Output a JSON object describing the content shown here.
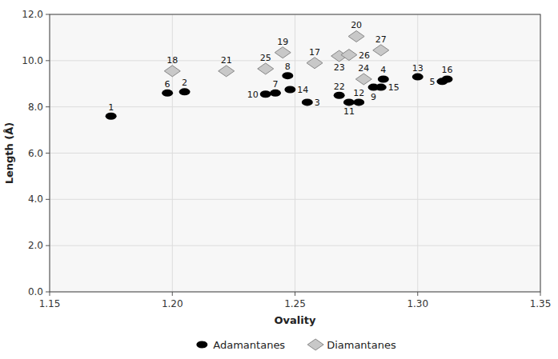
{
  "chart_data": {
    "type": "scatter",
    "xlabel": "Ovality",
    "ylabel": "Length (Å)",
    "xlim": [
      1.15,
      1.35
    ],
    "ylim": [
      0.0,
      12.0
    ],
    "xticks": [
      1.15,
      {
        "value": 1.2,
        "label": "1.20"
      },
      1.25,
      {
        "value": 1.3,
        "label": "1.30"
      },
      1.35
    ],
    "yticks": [
      {
        "value": 0.0,
        "label": "0.0"
      },
      {
        "value": 2.0,
        "label": "2.0"
      },
      {
        "value": 4.0,
        "label": "4.0"
      },
      {
        "value": 6.0,
        "label": "6.0"
      },
      {
        "value": 8.0,
        "label": "8.0"
      },
      {
        "value": 10.0,
        "label": "10.0"
      },
      {
        "value": 12.0,
        "label": "12.0"
      }
    ],
    "grid": true,
    "legend": "bottom",
    "series": [
      {
        "name": "Adamantanes",
        "color": "black",
        "marker": "ellipse",
        "x": [
          1.175,
          1.198,
          1.205,
          1.238,
          1.242,
          1.247,
          1.248,
          1.255,
          1.268,
          1.272,
          1.276,
          1.282,
          1.285,
          1.286,
          1.3,
          1.31,
          1.312
        ],
        "values": [
          7.6,
          8.6,
          8.65,
          8.55,
          8.6,
          9.35,
          8.75,
          8.2,
          8.5,
          8.2,
          8.2,
          8.85,
          8.85,
          9.2,
          9.3,
          9.1,
          9.2
        ],
        "labels": [
          "1",
          "6",
          "2",
          "10",
          "7",
          "8",
          "14",
          "3",
          "22",
          "11",
          "12",
          "9",
          "15",
          "4",
          "13",
          "5",
          "16"
        ]
      },
      {
        "name": "Diamantanes",
        "color": "#c8c8c8",
        "marker": "diamond",
        "x": [
          1.2,
          1.222,
          1.238,
          1.245,
          1.258,
          1.268,
          1.272,
          1.275,
          1.285,
          1.278
        ],
        "values": [
          9.55,
          9.55,
          9.65,
          10.35,
          9.9,
          10.2,
          10.25,
          11.05,
          10.45,
          9.2
        ],
        "labels": [
          "18",
          "21",
          "25",
          "19",
          "17",
          "23",
          "26",
          "20",
          "27",
          "24"
        ]
      }
    ]
  }
}
